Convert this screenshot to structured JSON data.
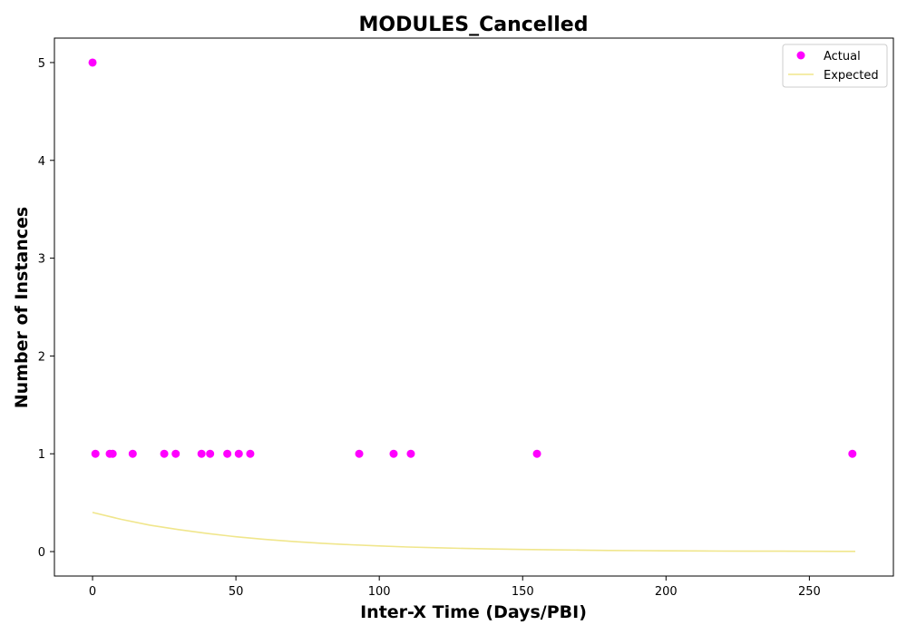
{
  "chart_data": {
    "type": "scatter",
    "title": "MODULES_Cancelled",
    "xlabel": "Inter-X Time (Days/PBI)",
    "ylabel": "Number of Instances",
    "xlim": [
      -13.3,
      279.3
    ],
    "ylim": [
      -0.25,
      5.25
    ],
    "xticks": [
      0,
      50,
      100,
      150,
      200,
      250
    ],
    "yticks": [
      0,
      1,
      2,
      3,
      4,
      5
    ],
    "grid": false,
    "legend_position": "top-right",
    "series": [
      {
        "name": "Actual",
        "kind": "scatter",
        "color": "#ff00ff",
        "x": [
          0,
          1,
          6,
          7,
          14,
          25,
          29,
          38,
          41,
          47,
          51,
          55,
          93,
          105,
          111,
          155,
          265
        ],
        "y": [
          5,
          1,
          1,
          1,
          1,
          1,
          1,
          1,
          1,
          1,
          1,
          1,
          1,
          1,
          1,
          1,
          1
        ]
      },
      {
        "name": "Expected",
        "kind": "line",
        "color": "#f0e68c",
        "x": [
          0,
          10,
          20,
          30,
          40,
          50,
          60,
          70,
          80,
          90,
          100,
          110,
          120,
          130,
          140,
          150,
          160,
          170,
          180,
          190,
          200,
          210,
          220,
          230,
          240,
          250,
          260,
          266
        ],
        "y": [
          0.4,
          0.33,
          0.27,
          0.225,
          0.185,
          0.152,
          0.125,
          0.103,
          0.085,
          0.07,
          0.058,
          0.047,
          0.039,
          0.032,
          0.026,
          0.022,
          0.018,
          0.015,
          0.012,
          0.01,
          0.008,
          0.007,
          0.0055,
          0.0045,
          0.0037,
          0.003,
          0.0025,
          0.0023
        ]
      }
    ]
  }
}
